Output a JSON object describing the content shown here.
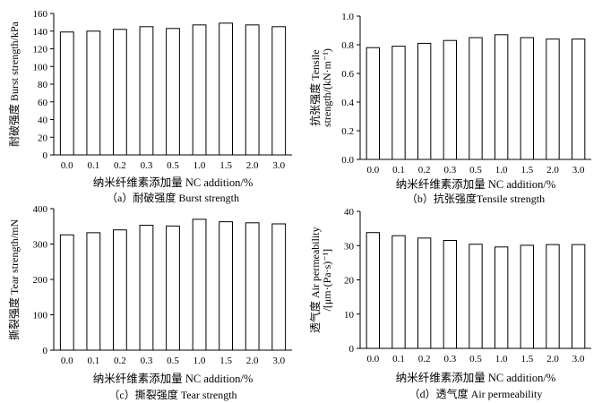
{
  "figure": {
    "panels": [
      {
        "caption": "（a）耐破强度 Burst strength",
        "xlabel": "纳米纤维素添加量 NC addition/%",
        "ylabel_lines": [
          "耐破强度 Burst strength/kPa"
        ]
      },
      {
        "caption": "（b）抗张强度Tensile strength",
        "xlabel": "纳米纤维素添加量 NC addition/%",
        "ylabel_lines": [
          "抗张强度 Tensile",
          "strength/(kN·m⁻¹)"
        ]
      },
      {
        "caption": "（c）撕裂强度 Tear strength",
        "xlabel": "纳米纤维素添加量 NC addition/%",
        "ylabel_lines": [
          "撕裂强度 Tear strength/mN"
        ]
      },
      {
        "caption": "（d）透气度 Air permeability",
        "xlabel": "纳米纤维素添加量 NC addition/%",
        "ylabel_lines": [
          "透气度 Air permeability",
          "/[μm·(Pa·s)⁻¹]"
        ]
      }
    ]
  },
  "chart_data": [
    {
      "type": "bar",
      "title": "（a）耐破强度 Burst strength",
      "categories": [
        "0.0",
        "0.1",
        "0.2",
        "0.3",
        "0.5",
        "1.0",
        "1.5",
        "2.0",
        "3.0"
      ],
      "values": [
        139,
        140,
        142,
        145,
        143,
        147,
        149,
        147,
        145
      ],
      "xlabel": "纳米纤维素添加量 NC addition/%",
      "ylabel": "耐破强度 Burst strength/kPa",
      "ylim": [
        0,
        160
      ],
      "yticks": [
        "0",
        "20",
        "40",
        "60",
        "80",
        "100",
        "120",
        "140",
        "160"
      ],
      "grid": false
    },
    {
      "type": "bar",
      "title": "（b）抗张强度Tensile strength",
      "categories": [
        "0.0",
        "0.1",
        "0.2",
        "0.3",
        "0.5",
        "1.0",
        "1.5",
        "2.0",
        "3.0"
      ],
      "values": [
        0.78,
        0.79,
        0.81,
        0.83,
        0.85,
        0.87,
        0.85,
        0.84,
        0.84
      ],
      "xlabel": "纳米纤维素添加量 NC addition/%",
      "ylabel": "抗张强度 Tensile strength/(kN·m⁻¹)",
      "ylim": [
        0,
        1.0
      ],
      "yticks": [
        "0.0",
        "0.2",
        "0.4",
        "0.6",
        "0.8",
        "1.0"
      ],
      "grid": false
    },
    {
      "type": "bar",
      "title": "（c）撕裂强度 Tear strength",
      "categories": [
        "0.0",
        "0.1",
        "0.2",
        "0.3",
        "0.5",
        "1.0",
        "1.5",
        "2.0",
        "3.0"
      ],
      "values": [
        326,
        332,
        340,
        353,
        351,
        370,
        363,
        360,
        357
      ],
      "xlabel": "纳米纤维素添加量 NC addition/%",
      "ylabel": "撕裂强度 Tear strength/mN",
      "ylim": [
        0,
        400
      ],
      "yticks": [
        "0",
        "100",
        "200",
        "300",
        "400"
      ],
      "grid": false
    },
    {
      "type": "bar",
      "title": "（d）透气度 Air permeability",
      "categories": [
        "0.0",
        "0.1",
        "0.2",
        "0.3",
        "0.5",
        "1.0",
        "1.5",
        "2.0",
        "3.0"
      ],
      "values": [
        33.8,
        32.9,
        32.2,
        31.5,
        30.4,
        29.6,
        30.1,
        30.3,
        30.3
      ],
      "xlabel": "纳米纤维素添加量 NC addition/%",
      "ylabel": "透气度 Air permeability/[μm·(Pa·s)⁻¹]",
      "ylim": [
        0,
        40
      ],
      "yticks": [
        "0",
        "10",
        "20",
        "30",
        "40"
      ],
      "grid": false
    }
  ]
}
